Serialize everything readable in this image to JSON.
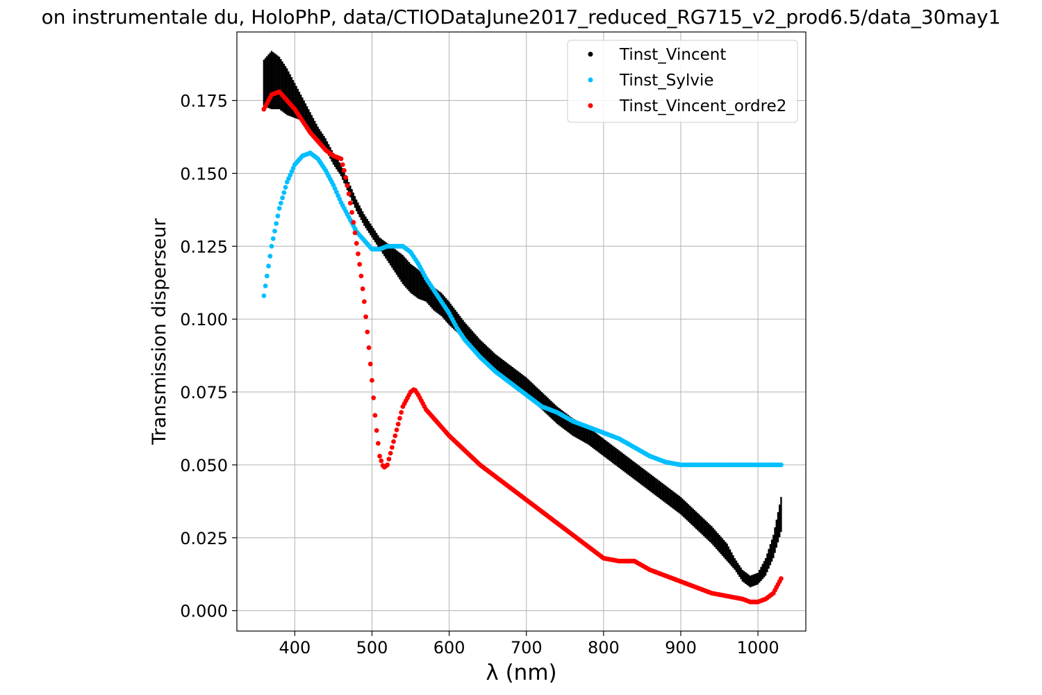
{
  "chart_data": {
    "type": "scatter",
    "title": "on instrumentale du, HoloPhP, data/CTIODataJune2017_reduced_RG715_v2_prod6.5/data_30may1",
    "xlabel": "λ (nm)",
    "ylabel": "Transmission disperseur",
    "xlim": [
      325,
      1062
    ],
    "ylim": [
      -0.007,
      0.1985
    ],
    "xticks": [
      400,
      500,
      600,
      700,
      800,
      900,
      1000
    ],
    "xtick_labels": [
      "400",
      "500",
      "600",
      "700",
      "800",
      "900",
      "1000"
    ],
    "yticks": [
      0.0,
      0.025,
      0.05,
      0.075,
      0.1,
      0.125,
      0.15,
      0.175
    ],
    "ytick_labels": [
      "0.000",
      "0.025",
      "0.050",
      "0.075",
      "0.100",
      "0.125",
      "0.150",
      "0.175"
    ],
    "grid": true,
    "legend_position": "top-right",
    "series": [
      {
        "name": "Tinst_Vincent",
        "color": "#000000",
        "x": [
          360,
          370,
          380,
          390,
          400,
          410,
          420,
          430,
          440,
          450,
          460,
          470,
          480,
          490,
          500,
          510,
          520,
          530,
          540,
          550,
          560,
          570,
          580,
          590,
          600,
          620,
          640,
          660,
          680,
          700,
          720,
          740,
          760,
          780,
          800,
          820,
          840,
          860,
          880,
          900,
          920,
          940,
          960,
          970,
          980,
          990,
          1000,
          1010,
          1020,
          1030
        ],
        "y": [
          0.181,
          0.182,
          0.181,
          0.178,
          0.175,
          0.172,
          0.168,
          0.164,
          0.16,
          0.155,
          0.151,
          0.145,
          0.139,
          0.134,
          0.13,
          0.126,
          0.123,
          0.12,
          0.117,
          0.114,
          0.112,
          0.11,
          0.107,
          0.105,
          0.102,
          0.096,
          0.09,
          0.085,
          0.081,
          0.077,
          0.072,
          0.067,
          0.063,
          0.06,
          0.056,
          0.052,
          0.048,
          0.044,
          0.04,
          0.036,
          0.031,
          0.026,
          0.02,
          0.016,
          0.012,
          0.01,
          0.011,
          0.015,
          0.022,
          0.033
        ],
        "half_width": [
          0.008,
          0.01,
          0.009,
          0.008,
          0.006,
          0.004,
          0.003,
          0.002,
          0.002,
          0.002,
          0.002,
          0.002,
          0.002,
          0.002,
          0.002,
          0.002,
          0.003,
          0.004,
          0.005,
          0.005,
          0.005,
          0.004,
          0.004,
          0.004,
          0.004,
          0.003,
          0.003,
          0.003,
          0.003,
          0.003,
          0.003,
          0.003,
          0.003,
          0.003,
          0.003,
          0.003,
          0.003,
          0.003,
          0.003,
          0.003,
          0.003,
          0.003,
          0.003,
          0.002,
          0.002,
          0.002,
          0.002,
          0.003,
          0.004,
          0.006
        ]
      },
      {
        "name": "Tinst_Sylvie",
        "color": "#00bfff",
        "x": [
          360,
          370,
          380,
          390,
          400,
          410,
          420,
          430,
          440,
          450,
          460,
          470,
          480,
          490,
          500,
          510,
          520,
          530,
          540,
          550,
          560,
          570,
          580,
          590,
          600,
          610,
          620,
          640,
          660,
          680,
          700,
          720,
          740,
          760,
          780,
          800,
          820,
          840,
          860,
          880,
          900,
          920,
          940,
          960,
          980,
          1000,
          1030
        ],
        "y": [
          0.108,
          0.125,
          0.138,
          0.147,
          0.153,
          0.156,
          0.157,
          0.155,
          0.151,
          0.146,
          0.14,
          0.135,
          0.13,
          0.127,
          0.124,
          0.124,
          0.125,
          0.125,
          0.125,
          0.123,
          0.119,
          0.114,
          0.11,
          0.106,
          0.102,
          0.097,
          0.093,
          0.087,
          0.082,
          0.078,
          0.074,
          0.07,
          0.068,
          0.065,
          0.063,
          0.061,
          0.059,
          0.056,
          0.053,
          0.051,
          0.05,
          0.05,
          0.05,
          0.05,
          0.05,
          0.05,
          0.05
        ]
      },
      {
        "name": "Tinst_Vincent_ordre2",
        "color": "#ff0000",
        "x": [
          360,
          370,
          380,
          390,
          400,
          410,
          420,
          430,
          440,
          450,
          460,
          465,
          470,
          475,
          480,
          485,
          490,
          495,
          500,
          505,
          510,
          515,
          520,
          530,
          540,
          550,
          555,
          560,
          570,
          580,
          600,
          620,
          640,
          660,
          680,
          700,
          720,
          740,
          760,
          780,
          800,
          820,
          840,
          860,
          880,
          900,
          920,
          940,
          960,
          980,
          990,
          1000,
          1010,
          1020,
          1030
        ],
        "y": [
          0.172,
          0.177,
          0.178,
          0.175,
          0.172,
          0.168,
          0.164,
          0.161,
          0.158,
          0.156,
          0.155,
          0.15,
          0.143,
          0.135,
          0.126,
          0.117,
          0.106,
          0.093,
          0.079,
          0.064,
          0.053,
          0.049,
          0.05,
          0.06,
          0.07,
          0.075,
          0.076,
          0.074,
          0.069,
          0.066,
          0.06,
          0.055,
          0.05,
          0.046,
          0.042,
          0.038,
          0.034,
          0.03,
          0.026,
          0.022,
          0.018,
          0.017,
          0.017,
          0.014,
          0.012,
          0.01,
          0.008,
          0.006,
          0.005,
          0.004,
          0.003,
          0.003,
          0.004,
          0.006,
          0.011
        ]
      }
    ]
  }
}
